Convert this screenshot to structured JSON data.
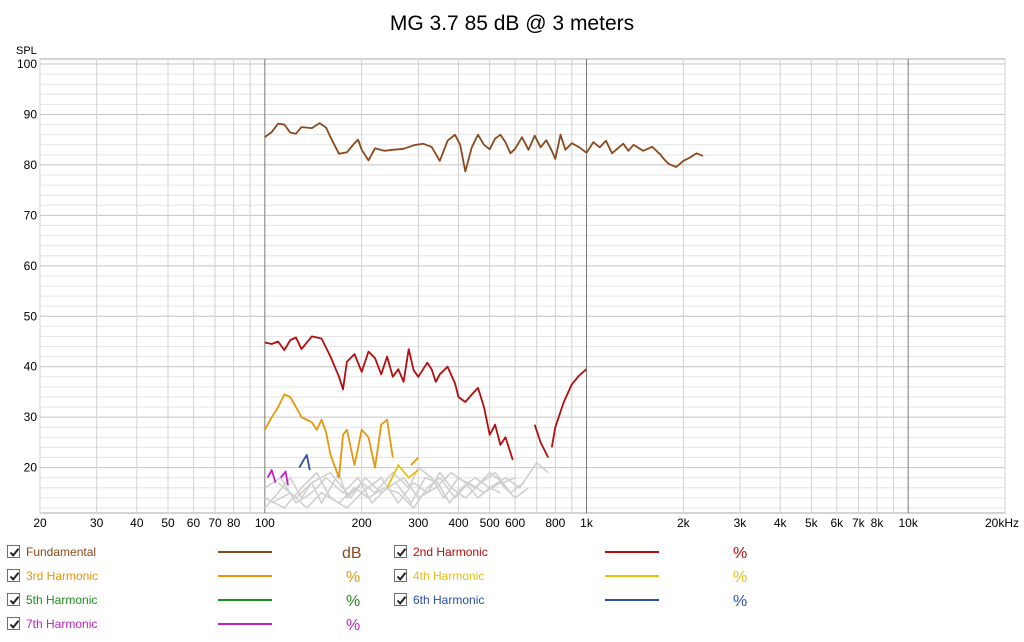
{
  "chart_data": {
    "type": "line",
    "title": "MG 3.7 85 dB @ 3 meters",
    "ylabel": "SPL",
    "xscale": "log",
    "xlim": [
      20,
      20000
    ],
    "ylim": [
      11,
      101
    ],
    "grid": true,
    "x_ticks": [
      {
        "v": 20,
        "label": "20"
      },
      {
        "v": 30,
        "label": "30"
      },
      {
        "v": 40,
        "label": "40"
      },
      {
        "v": 50,
        "label": "50"
      },
      {
        "v": 60,
        "label": "60"
      },
      {
        "v": 70,
        "label": "70"
      },
      {
        "v": 80,
        "label": "80"
      },
      {
        "v": 100,
        "label": "100"
      },
      {
        "v": 200,
        "label": "200"
      },
      {
        "v": 300,
        "label": "300"
      },
      {
        "v": 400,
        "label": "400"
      },
      {
        "v": 500,
        "label": "500"
      },
      {
        "v": 600,
        "label": "600"
      },
      {
        "v": 800,
        "label": "800"
      },
      {
        "v": 1000,
        "label": "1k"
      },
      {
        "v": 2000,
        "label": "2k"
      },
      {
        "v": 3000,
        "label": "3k"
      },
      {
        "v": 4000,
        "label": "4k"
      },
      {
        "v": 5000,
        "label": "5k"
      },
      {
        "v": 6000,
        "label": "6k"
      },
      {
        "v": 7000,
        "label": "7k"
      },
      {
        "v": 8000,
        "label": "8k"
      },
      {
        "v": 10000,
        "label": "10k"
      },
      {
        "v": 20000,
        "label": "20kHz"
      }
    ],
    "y_ticks": [
      {
        "v": 20,
        "label": "20"
      },
      {
        "v": 30,
        "label": "30"
      },
      {
        "v": 40,
        "label": "40"
      },
      {
        "v": 50,
        "label": "50"
      },
      {
        "v": 60,
        "label": "60"
      },
      {
        "v": 70,
        "label": "70"
      },
      {
        "v": 80,
        "label": "80"
      },
      {
        "v": 90,
        "label": "90"
      },
      {
        "v": 100,
        "label": "100"
      }
    ],
    "series": [
      {
        "name": "Fundamental",
        "unit": "dB",
        "color": "#8b4a1c",
        "segments": [
          [
            [
              100,
              85.5
            ],
            [
              105,
              86.5
            ],
            [
              110,
              88.2
            ],
            [
              115,
              88.0
            ],
            [
              120,
              86.4
            ],
            [
              125,
              86.2
            ],
            [
              130,
              87.5
            ],
            [
              140,
              87.3
            ],
            [
              148,
              88.3
            ],
            [
              155,
              87.4
            ],
            [
              160,
              85.5
            ],
            [
              170,
              82.2
            ],
            [
              180,
              82.5
            ],
            [
              190,
              84.3
            ],
            [
              195,
              85.0
            ],
            [
              200,
              83.0
            ],
            [
              210,
              80.9
            ],
            [
              220,
              83.3
            ],
            [
              235,
              82.8
            ],
            [
              250,
              83.0
            ],
            [
              270,
              83.2
            ],
            [
              290,
              83.9
            ],
            [
              310,
              84.2
            ],
            [
              330,
              83.6
            ],
            [
              350,
              80.8
            ],
            [
              370,
              84.8
            ],
            [
              390,
              86.0
            ],
            [
              405,
              84.0
            ],
            [
              420,
              78.7
            ],
            [
              440,
              83.5
            ],
            [
              460,
              86.0
            ],
            [
              480,
              84.0
            ],
            [
              500,
              83.1
            ],
            [
              520,
              85.2
            ],
            [
              540,
              86.0
            ],
            [
              560,
              84.5
            ],
            [
              580,
              82.3
            ],
            [
              600,
              83.2
            ],
            [
              630,
              85.5
            ],
            [
              660,
              83.0
            ],
            [
              690,
              85.8
            ],
            [
              720,
              83.5
            ],
            [
              750,
              84.9
            ],
            [
              780,
              82.8
            ],
            [
              800,
              81.2
            ],
            [
              830,
              86.0
            ],
            [
              860,
              83.0
            ],
            [
              900,
              84.3
            ],
            [
              950,
              83.5
            ],
            [
              1000,
              82.4
            ],
            [
              1050,
              84.5
            ],
            [
              1100,
              83.5
            ],
            [
              1150,
              84.8
            ],
            [
              1200,
              82.3
            ],
            [
              1300,
              84.2
            ],
            [
              1350,
              82.8
            ],
            [
              1400,
              84.0
            ],
            [
              1500,
              82.8
            ],
            [
              1600,
              83.6
            ],
            [
              1700,
              82.0
            ],
            [
              1750,
              81.0
            ],
            [
              1800,
              80.2
            ],
            [
              1900,
              79.6
            ],
            [
              2000,
              80.8
            ],
            [
              2100,
              81.5
            ],
            [
              2200,
              82.3
            ],
            [
              2300,
              81.8
            ]
          ]
        ]
      },
      {
        "name": "2nd Harmonic",
        "unit": "%",
        "color": "#b40d0d",
        "segments": [
          [
            [
              100,
              44.8
            ],
            [
              105,
              44.5
            ],
            [
              110,
              45.0
            ],
            [
              115,
              43.3
            ],
            [
              120,
              45.3
            ],
            [
              125,
              45.8
            ],
            [
              130,
              43.5
            ],
            [
              140,
              46.0
            ],
            [
              150,
              45.6
            ],
            [
              160,
              42.0
            ],
            [
              170,
              38.0
            ],
            [
              175,
              35.5
            ],
            [
              180,
              41.0
            ],
            [
              190,
              42.5
            ],
            [
              200,
              39.0
            ],
            [
              210,
              43.0
            ],
            [
              220,
              41.7
            ],
            [
              230,
              38.5
            ],
            [
              240,
              42.0
            ],
            [
              250,
              38.0
            ],
            [
              260,
              39.5
            ],
            [
              270,
              37.0
            ],
            [
              280,
              43.5
            ],
            [
              290,
              39.3
            ],
            [
              300,
              38.0
            ],
            [
              320,
              40.8
            ],
            [
              330,
              39.5
            ],
            [
              340,
              37.0
            ],
            [
              350,
              38.5
            ],
            [
              370,
              40.0
            ],
            [
              390,
              36.7
            ],
            [
              400,
              34.0
            ],
            [
              420,
              33.0
            ],
            [
              440,
              34.5
            ],
            [
              460,
              35.8
            ],
            [
              480,
              32.0
            ],
            [
              500,
              26.5
            ],
            [
              520,
              28.5
            ],
            [
              540,
              24.5
            ],
            [
              560,
              26.0
            ],
            [
              590,
              21.5
            ]
          ],
          [
            [
              690,
              28.5
            ],
            [
              720,
              25.0
            ],
            [
              760,
              22.0
            ]
          ],
          [
            [
              780,
              24.0
            ],
            [
              800,
              28.0
            ],
            [
              850,
              33.0
            ],
            [
              900,
              36.5
            ],
            [
              950,
              38.3
            ],
            [
              1000,
              39.5
            ]
          ]
        ]
      },
      {
        "name": "3rd Harmonic",
        "unit": "%",
        "color": "#e8960a",
        "segments": [
          [
            [
              100,
              27.5
            ],
            [
              105,
              30.0
            ],
            [
              110,
              32.0
            ],
            [
              115,
              34.5
            ],
            [
              120,
              34.0
            ],
            [
              125,
              32.0
            ],
            [
              130,
              30.0
            ],
            [
              140,
              29.0
            ],
            [
              145,
              27.5
            ],
            [
              150,
              29.5
            ],
            [
              155,
              27.0
            ],
            [
              160,
              22.5
            ],
            [
              170,
              18.0
            ],
            [
              175,
              26.5
            ],
            [
              180,
              27.5
            ],
            [
              190,
              20.5
            ],
            [
              200,
              27.5
            ],
            [
              210,
              26.0
            ],
            [
              220,
              20.0
            ],
            [
              230,
              28.5
            ],
            [
              240,
              29.5
            ],
            [
              250,
              22.0
            ]
          ],
          [
            [
              285,
              20.5
            ],
            [
              300,
              22.0
            ]
          ]
        ]
      },
      {
        "name": "4th Harmonic",
        "unit": "%",
        "color": "#e6c010",
        "segments": [
          [
            [
              240,
              16.0
            ],
            [
              260,
              20.5
            ],
            [
              280,
              18.0
            ],
            [
              300,
              19.5
            ]
          ]
        ]
      },
      {
        "name": "5th Harmonic",
        "unit": "%",
        "color": "#1e8c1e",
        "segments": []
      },
      {
        "name": "6th Harmonic",
        "unit": "%",
        "color": "#2a4fa6",
        "segments": [
          [
            [
              128,
              20.0
            ],
            [
              132,
              21.5
            ],
            [
              135,
              22.5
            ],
            [
              138,
              19.5
            ]
          ]
        ]
      },
      {
        "name": "7th Harmonic",
        "unit": "%",
        "color": "#c020c0",
        "segments": [
          [
            [
              102,
              18.0
            ],
            [
              105,
              19.5
            ],
            [
              108,
              17.0
            ]
          ],
          [
            [
              112,
              18.0
            ],
            [
              116,
              19.2
            ],
            [
              118,
              16.5
            ]
          ]
        ]
      }
    ],
    "gray_traces": [
      [
        [
          100,
          12
        ],
        [
          110,
          15
        ],
        [
          120,
          18
        ],
        [
          130,
          14
        ],
        [
          140,
          17
        ],
        [
          150,
          13
        ],
        [
          160,
          16
        ],
        [
          170,
          19
        ],
        [
          180,
          14
        ],
        [
          200,
          17
        ],
        [
          220,
          15
        ],
        [
          250,
          19
        ],
        [
          280,
          16
        ],
        [
          300,
          20
        ],
        [
          330,
          18
        ],
        [
          360,
          14
        ],
        [
          400,
          18
        ],
        [
          450,
          16
        ],
        [
          500,
          19
        ],
        [
          550,
          17
        ],
        [
          600,
          18
        ]
      ],
      [
        [
          100,
          14
        ],
        [
          115,
          12
        ],
        [
          130,
          16
        ],
        [
          145,
          19
        ],
        [
          160,
          14
        ],
        [
          180,
          12
        ],
        [
          200,
          15
        ],
        [
          230,
          18
        ],
        [
          260,
          13
        ],
        [
          290,
          17
        ],
        [
          320,
          15
        ],
        [
          350,
          19
        ],
        [
          380,
          16
        ],
        [
          420,
          14
        ],
        [
          470,
          17
        ],
        [
          520,
          19
        ],
        [
          580,
          15
        ],
        [
          640,
          17
        ]
      ],
      [
        [
          100,
          16
        ],
        [
          112,
          18
        ],
        [
          125,
          13
        ],
        [
          140,
          15
        ],
        [
          155,
          18
        ],
        [
          175,
          15
        ],
        [
          195,
          18
        ],
        [
          215,
          13
        ],
        [
          240,
          16
        ],
        [
          270,
          18
        ],
        [
          300,
          14
        ],
        [
          340,
          16
        ],
        [
          380,
          19
        ],
        [
          420,
          17
        ],
        [
          460,
          14
        ],
        [
          500,
          16
        ],
        [
          560,
          18
        ],
        [
          620,
          16
        ],
        [
          700,
          21
        ],
        [
          760,
          19
        ]
      ],
      [
        [
          105,
          13
        ],
        [
          120,
          15
        ],
        [
          135,
          12
        ],
        [
          150,
          15
        ],
        [
          170,
          13
        ],
        [
          190,
          16
        ],
        [
          210,
          14
        ],
        [
          235,
          16
        ],
        [
          260,
          15
        ],
        [
          290,
          12
        ],
        [
          320,
          16
        ],
        [
          350,
          18
        ],
        [
          390,
          14
        ],
        [
          430,
          17
        ],
        [
          480,
          15
        ],
        [
          540,
          17
        ],
        [
          600,
          14
        ],
        [
          660,
          16
        ]
      ],
      [
        [
          110,
          17
        ],
        [
          125,
          14
        ],
        [
          140,
          17
        ],
        [
          160,
          19
        ],
        [
          185,
          14
        ],
        [
          205,
          18
        ],
        [
          230,
          15
        ],
        [
          255,
          17
        ],
        [
          285,
          13
        ],
        [
          315,
          18
        ],
        [
          345,
          17
        ],
        [
          375,
          13
        ],
        [
          410,
          16
        ],
        [
          450,
          18
        ],
        [
          500,
          16
        ],
        [
          540,
          15
        ]
      ]
    ]
  },
  "legend": [
    {
      "name": "Fundamental",
      "unit": "dB",
      "color": "#8b4a1c",
      "checked": true
    },
    {
      "name": "2nd Harmonic",
      "unit": "%",
      "color": "#b40d0d",
      "checked": true
    },
    {
      "name": "3rd Harmonic",
      "unit": "%",
      "color": "#e8960a",
      "checked": true
    },
    {
      "name": "4th Harmonic",
      "unit": "%",
      "color": "#e6c010",
      "checked": true
    },
    {
      "name": "5th Harmonic",
      "unit": "%",
      "color": "#1e8c1e",
      "checked": true
    },
    {
      "name": "6th Harmonic",
      "unit": "%",
      "color": "#2a4fa6",
      "checked": true
    },
    {
      "name": "7th Harmonic",
      "unit": "%",
      "color": "#c020c0",
      "checked": true
    }
  ]
}
